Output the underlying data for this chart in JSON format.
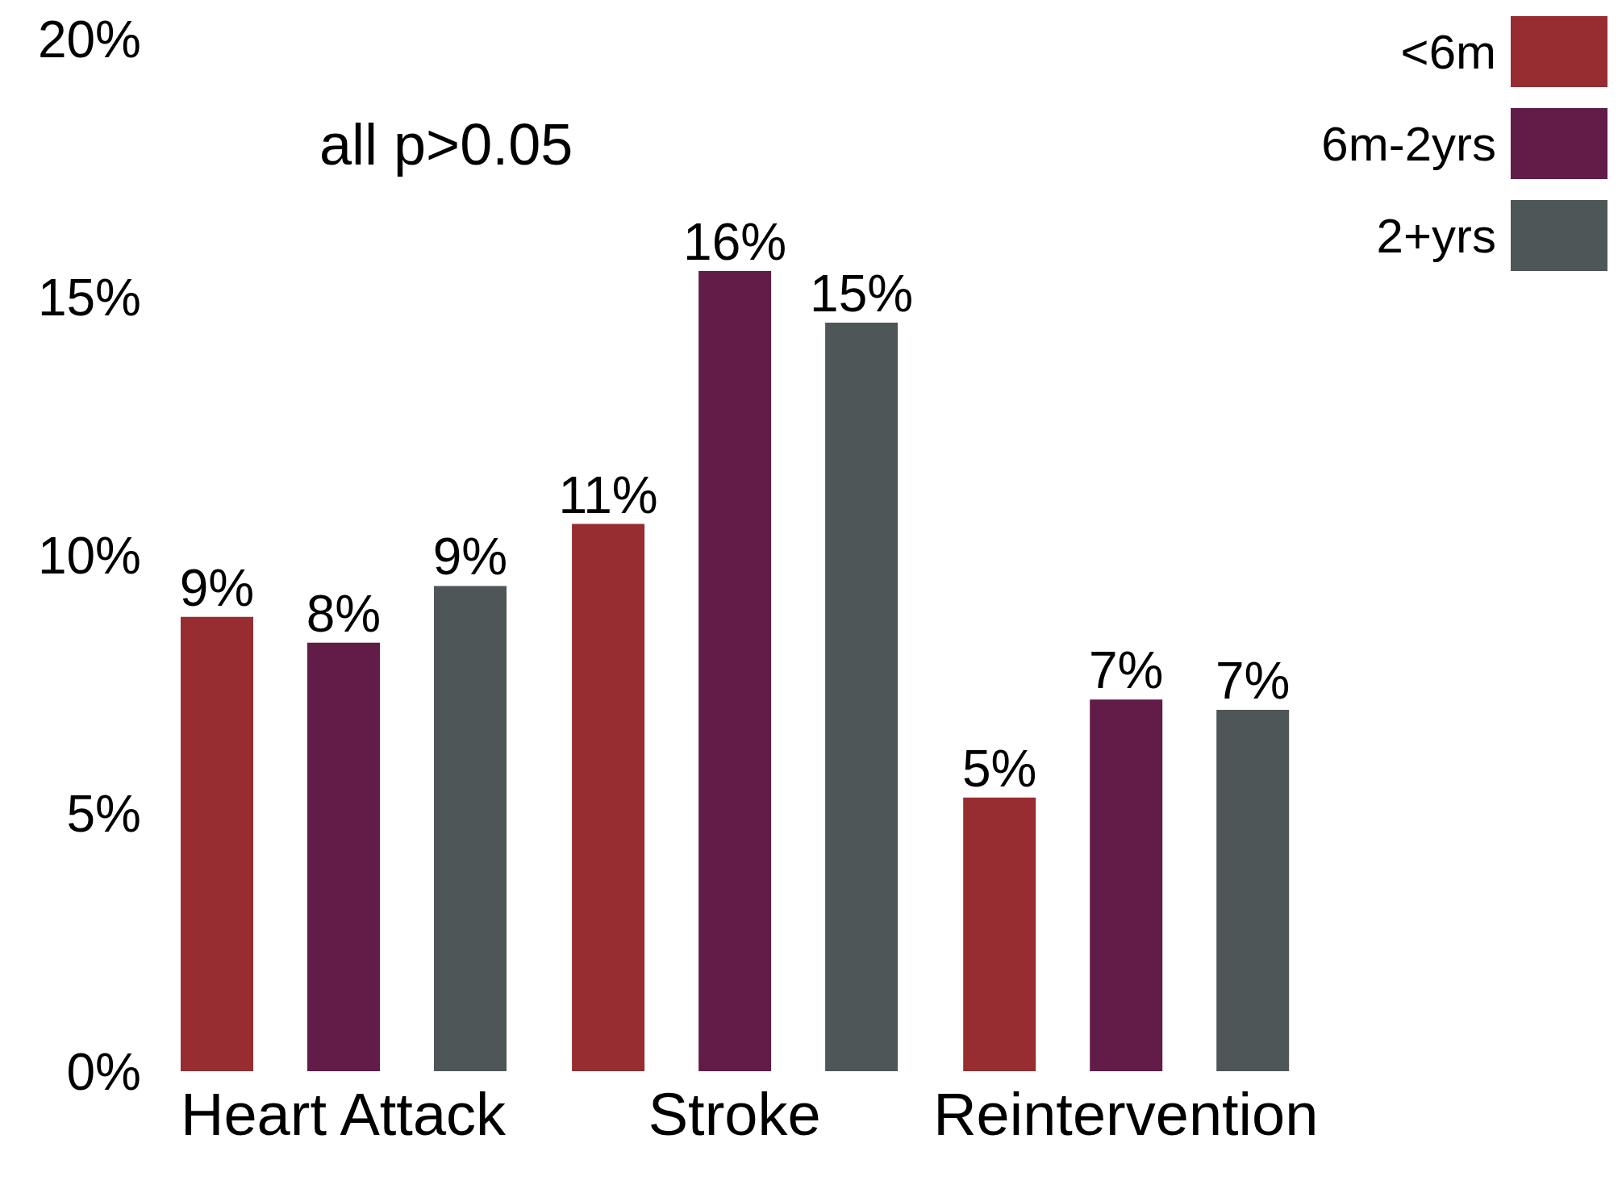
{
  "chart_data": {
    "type": "bar",
    "categories": [
      "Heart Attack",
      "Stroke",
      "Reintervention"
    ],
    "series": [
      {
        "name": "<6m",
        "color": "#972d30",
        "values": [
          8.8,
          10.6,
          5.3
        ],
        "value_labels": [
          "9%",
          "11%",
          "5%"
        ]
      },
      {
        "name": "6m-2yrs",
        "color": "#611c48",
        "values": [
          8.3,
          15.5,
          7.2
        ],
        "value_labels": [
          "8%",
          "16%",
          "7%"
        ]
      },
      {
        "name": "2+yrs",
        "color": "#4f5658",
        "values": [
          9.4,
          14.5,
          7.0
        ],
        "value_labels": [
          "9%",
          "15%",
          "7%"
        ]
      }
    ],
    "ylim": [
      0,
      20
    ],
    "yticks": [
      {
        "value": 0,
        "label": "0%"
      },
      {
        "value": 5,
        "label": "5%"
      },
      {
        "value": 10,
        "label": "10%"
      },
      {
        "value": 15,
        "label": "15%"
      },
      {
        "value": 20,
        "label": "20%"
      }
    ],
    "annotations": [
      "all p>0.05"
    ],
    "legend": "top right",
    "grid": false
  }
}
